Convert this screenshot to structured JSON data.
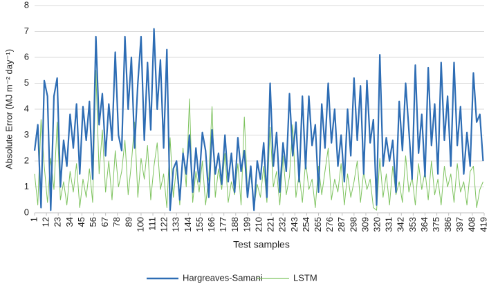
{
  "chart_data": {
    "type": "line",
    "y_label": "Absolute Error (MJ m⁻² day⁻¹)",
    "x_label": "Test samples",
    "x": [
      1,
      4,
      7,
      10,
      13,
      16,
      19,
      22,
      25,
      28,
      31,
      34,
      37,
      40,
      43,
      46,
      49,
      52,
      55,
      58,
      61,
      64,
      67,
      70,
      73,
      76,
      79,
      82,
      85,
      88,
      91,
      94,
      97,
      100,
      103,
      106,
      109,
      112,
      115,
      118,
      121,
      124,
      127,
      130,
      133,
      136,
      139,
      142,
      145,
      148,
      151,
      154,
      157,
      160,
      163,
      166,
      169,
      172,
      175,
      178,
      181,
      184,
      187,
      190,
      193,
      196,
      199,
      202,
      205,
      208,
      211,
      214,
      217,
      220,
      223,
      226,
      229,
      232,
      235,
      238,
      241,
      244,
      247,
      250,
      253,
      256,
      259,
      262,
      265,
      268,
      271,
      274,
      277,
      280,
      283,
      286,
      289,
      292,
      295,
      298,
      301,
      304,
      307,
      310,
      313,
      316,
      319,
      322,
      325,
      328,
      331,
      334,
      337,
      340,
      343,
      346,
      349,
      352,
      355,
      358,
      361,
      364,
      367,
      370,
      373,
      376,
      379,
      382,
      385,
      388,
      391,
      394,
      397,
      400,
      403,
      406,
      409,
      412,
      415,
      418
    ],
    "series": [
      {
        "name": "Hargreaves-Samani",
        "color": "#2e6db4",
        "values": [
          2.4,
          3.4,
          0.2,
          5.1,
          4.5,
          0.1,
          4.5,
          5.2,
          1.0,
          2.8,
          1.8,
          3.8,
          2.5,
          4.2,
          1.5,
          4.1,
          2.8,
          4.3,
          1.3,
          6.8,
          3.4,
          4.6,
          2.2,
          4.2,
          2.8,
          6.2,
          3.0,
          2.4,
          6.8,
          4.0,
          6.0,
          2.5,
          5.0,
          6.8,
          2.8,
          5.8,
          3.2,
          7.1,
          4.0,
          5.9,
          2.5,
          6.3,
          0.1,
          1.7,
          2.0,
          0.5,
          2.3,
          1.5,
          3.0,
          0.8,
          2.5,
          1.2,
          3.1,
          2.4,
          0.6,
          3.2,
          1.5,
          2.3,
          1.1,
          3.0,
          1.2,
          2.3,
          0.8,
          2.9,
          1.6,
          2.4,
          0.6,
          1.8,
          0.1,
          2.0,
          1.3,
          2.7,
          0.6,
          5.0,
          1.8,
          3.1,
          0.8,
          2.7,
          1.6,
          4.6,
          2.2,
          3.5,
          1.2,
          4.5,
          1.7,
          4.5,
          2.6,
          3.4,
          0.8,
          4.2,
          2.5,
          5.0,
          2.7,
          4.0,
          1.8,
          3.0,
          1.2,
          4.0,
          2.2,
          5.2,
          2.8,
          4.9,
          1.5,
          5.1,
          2.7,
          3.6,
          0.3,
          6.1,
          1.8,
          2.9,
          2.0,
          2.8,
          0.8,
          4.3,
          2.4,
          5.0,
          3.2,
          1.3,
          5.7,
          2.3,
          3.8,
          1.4,
          5.6,
          2.6,
          4.2,
          1.5,
          5.8,
          2.8,
          4.5,
          1.8,
          5.8,
          2.6,
          4.1,
          1.5,
          3.1,
          1.8,
          5.4,
          3.5,
          3.8,
          2.0
        ]
      },
      {
        "name": "LSTM",
        "color": "#7ec35f",
        "values": [
          1.5,
          0.3,
          3.6,
          1.8,
          0.4,
          2.1,
          0.9,
          3.5,
          0.5,
          1.2,
          0.3,
          1.6,
          0.8,
          1.9,
          0.2,
          1.3,
          0.6,
          1.7,
          0.4,
          5.5,
          1.5,
          3.2,
          0.8,
          2.0,
          0.5,
          2.4,
          1.0,
          1.6,
          2.8,
          0.7,
          1.9,
          3.5,
          0.6,
          2.1,
          1.3,
          2.6,
          0.5,
          1.8,
          2.7,
          0.9,
          1.5,
          0.2,
          2.9,
          0.6,
          1.8,
          0.3,
          2.5,
          1.0,
          4.4,
          0.4,
          1.6,
          0.8,
          2.0,
          0.3,
          1.4,
          4.1,
          0.6,
          1.7,
          0.9,
          2.3,
          0.4,
          1.2,
          0.7,
          1.9,
          0.3,
          3.7,
          0.8,
          1.5,
          0.2,
          1.1,
          0.6,
          1.8,
          0.4,
          3.3,
          1.0,
          1.6,
          0.3,
          2.2,
          0.7,
          1.4,
          3.4,
          0.6,
          1.5,
          0.4,
          2.0,
          0.9,
          1.3,
          0.2,
          1.8,
          0.7,
          1.6,
          2.5,
          0.5,
          1.3,
          0.8,
          1.9,
          0.3,
          1.5,
          0.6,
          1.2,
          2.0,
          0.4,
          1.6,
          0.9,
          1.3,
          0.2,
          0.1,
          2.1,
          0.6,
          1.5,
          0.3,
          1.8,
          0.7,
          1.2,
          0.4,
          2.2,
          0.8,
          1.4,
          0.3,
          1.9,
          0.9,
          1.6,
          0.5,
          2.0,
          0.7,
          1.3,
          0.3,
          1.8,
          1.0,
          1.5,
          0.4,
          1.9,
          0.8,
          1.2,
          0.3,
          1.6,
          1.8,
          0.2,
          0.9,
          1.2
        ]
      }
    ],
    "xlim": [
      1,
      419
    ],
    "xticks": [
      1,
      12,
      23,
      34,
      45,
      56,
      67,
      78,
      89,
      100,
      111,
      122,
      133,
      144,
      155,
      166,
      177,
      188,
      199,
      210,
      221,
      232,
      243,
      254,
      265,
      276,
      287,
      298,
      309,
      320,
      331,
      342,
      353,
      364,
      375,
      386,
      397,
      408,
      419
    ],
    "ylim": [
      0,
      8
    ],
    "yticks": [
      0,
      1,
      2,
      3,
      4,
      5,
      6,
      7,
      8
    ],
    "grid": true,
    "legend": "bottom"
  }
}
